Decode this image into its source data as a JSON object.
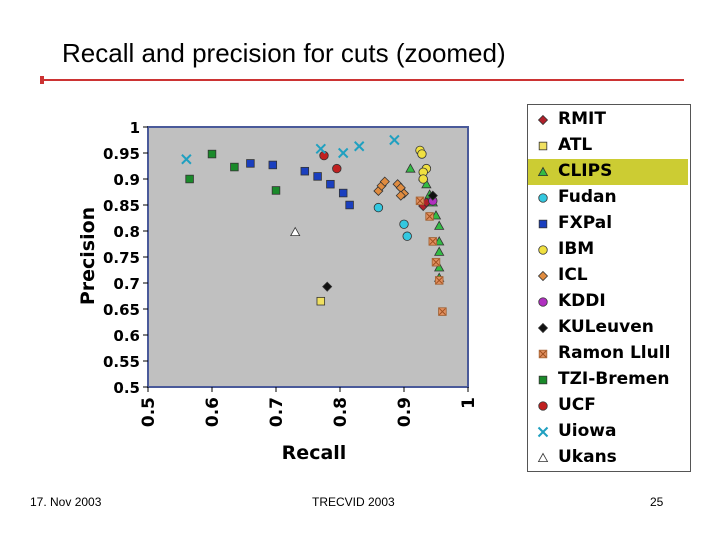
{
  "slide": {
    "title": "Recall and precision for cuts (zoomed)",
    "footer_left": "17. Nov 2003",
    "footer_center": "TRECVID 2003",
    "footer_right": "25"
  },
  "colors": {
    "accent_line": "#cc3333",
    "plot_bg": "#c0c0c0",
    "plot_border": "#4a5a9a",
    "highlight": "#cccc33"
  },
  "chart_data": {
    "type": "scatter",
    "xlabel": "Recall",
    "ylabel": "Precision",
    "xlim": [
      0.5,
      1
    ],
    "ylim": [
      0.5,
      1
    ],
    "xticks": [
      "0.5",
      "0.6",
      "0.7",
      "0.8",
      "0.9",
      "1"
    ],
    "yticks": [
      "1",
      "0.95",
      "0.9",
      "0.85",
      "0.8",
      "0.75",
      "0.7",
      "0.65",
      "0.6",
      "0.55",
      "0.5"
    ],
    "grid": false,
    "legend_position": "right",
    "highlighted_series": "CLIPS",
    "series": [
      {
        "name": "RMIT",
        "marker": "diamond",
        "color": "#b0202a",
        "points": [
          [
            0.93,
            0.848
          ],
          [
            0.935,
            0.855
          ]
        ]
      },
      {
        "name": "ATL",
        "marker": "square",
        "color": "#f0e060",
        "points": [
          [
            0.77,
            0.665
          ]
        ]
      },
      {
        "name": "CLIPS",
        "marker": "triangle",
        "color": "#33bb44",
        "points": [
          [
            0.91,
            0.92
          ],
          [
            0.93,
            0.905
          ],
          [
            0.935,
            0.89
          ],
          [
            0.94,
            0.87
          ],
          [
            0.945,
            0.855
          ],
          [
            0.95,
            0.83
          ],
          [
            0.955,
            0.81
          ],
          [
            0.955,
            0.78
          ],
          [
            0.955,
            0.76
          ],
          [
            0.955,
            0.73
          ],
          [
            0.955,
            0.71
          ]
        ]
      },
      {
        "name": "Fudan",
        "marker": "circle",
        "color": "#33c8e0",
        "points": [
          [
            0.86,
            0.845
          ],
          [
            0.9,
            0.813
          ],
          [
            0.905,
            0.79
          ]
        ]
      },
      {
        "name": "FXPal",
        "marker": "square",
        "color": "#1a3fbf",
        "points": [
          [
            0.66,
            0.93
          ],
          [
            0.695,
            0.927
          ],
          [
            0.745,
            0.915
          ],
          [
            0.765,
            0.905
          ],
          [
            0.785,
            0.89
          ],
          [
            0.805,
            0.873
          ],
          [
            0.815,
            0.85
          ]
        ]
      },
      {
        "name": "IBM",
        "marker": "circle",
        "color": "#f0e040",
        "points": [
          [
            0.925,
            0.955
          ],
          [
            0.928,
            0.948
          ],
          [
            0.935,
            0.92
          ],
          [
            0.93,
            0.913
          ],
          [
            0.93,
            0.9
          ]
        ]
      },
      {
        "name": "ICL",
        "marker": "diamond",
        "color": "#e08c40",
        "points": [
          [
            0.86,
            0.877
          ],
          [
            0.865,
            0.887
          ],
          [
            0.87,
            0.895
          ],
          [
            0.89,
            0.89
          ],
          [
            0.895,
            0.883
          ],
          [
            0.9,
            0.872
          ],
          [
            0.895,
            0.868
          ]
        ]
      },
      {
        "name": "KDDI",
        "marker": "circle",
        "color": "#b030c0",
        "points": [
          [
            0.945,
            0.858
          ]
        ]
      },
      {
        "name": "KULeuven",
        "marker": "diamond",
        "color": "#111111",
        "points": [
          [
            0.945,
            0.868
          ],
          [
            0.78,
            0.693
          ]
        ]
      },
      {
        "name": "Ramon Llull",
        "marker": "xsquare",
        "color": "#e09060",
        "points": [
          [
            0.925,
            0.858
          ],
          [
            0.94,
            0.828
          ],
          [
            0.945,
            0.78
          ],
          [
            0.95,
            0.74
          ],
          [
            0.955,
            0.705
          ],
          [
            0.96,
            0.645
          ]
        ]
      },
      {
        "name": "TZI-Bremen",
        "marker": "square",
        "color": "#1a8a2a",
        "points": [
          [
            0.565,
            0.9
          ],
          [
            0.6,
            0.948
          ],
          [
            0.635,
            0.923
          ],
          [
            0.7,
            0.878
          ]
        ]
      },
      {
        "name": "UCF",
        "marker": "circle",
        "color": "#c02020",
        "points": [
          [
            0.775,
            0.945
          ],
          [
            0.795,
            0.92
          ]
        ]
      },
      {
        "name": "Uiowa",
        "marker": "x",
        "color": "#20a0c0",
        "points": [
          [
            0.56,
            0.938
          ],
          [
            0.77,
            0.958
          ],
          [
            0.805,
            0.95
          ],
          [
            0.83,
            0.963
          ],
          [
            0.885,
            0.975
          ]
        ]
      },
      {
        "name": "Ukans",
        "marker": "triangle-open",
        "color": "#ffffff",
        "points": [
          [
            0.73,
            0.798
          ]
        ]
      }
    ]
  }
}
